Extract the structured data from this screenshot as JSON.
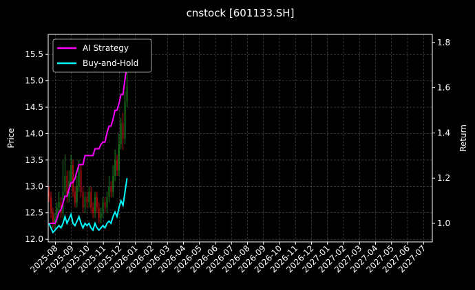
{
  "chart_data": {
    "type": "candlestick",
    "title": "cnstock [601133.SH]",
    "ylabel": "Price",
    "y2label": "Return",
    "x": [
      -0.4,
      -0.275,
      -0.15,
      -0.025,
      0.1,
      0.225,
      0.35,
      0.475,
      0.6,
      0.725,
      0.85,
      0.975,
      1.1,
      1.225,
      1.35,
      1.475,
      1.6,
      1.725,
      1.85,
      1.975,
      2.1,
      2.225,
      2.35,
      2.475,
      2.6,
      2.725,
      2.85,
      2.975,
      3.1,
      3.225,
      3.35,
      3.475,
      3.6,
      3.725,
      3.85,
      3.975,
      4.1,
      4.225,
      4.35,
      4.475
    ],
    "open": [
      12.9,
      12.8,
      12.5,
      12.3,
      12.4,
      12.6,
      12.7,
      12.5,
      12.9,
      13.2,
      12.8,
      13.1,
      13.4,
      12.9,
      12.7,
      13.0,
      13.3,
      12.9,
      12.6,
      12.8,
      12.7,
      12.9,
      12.6,
      12.5,
      12.8,
      12.6,
      12.4,
      12.5,
      12.7,
      12.6,
      12.8,
      13.0,
      12.9,
      13.2,
      13.5,
      13.3,
      13.8,
      14.2,
      13.9,
      14.6
    ],
    "high": [
      13.0,
      12.9,
      12.6,
      12.5,
      12.7,
      12.9,
      12.8,
      13.5,
      13.6,
      13.3,
      13.3,
      13.6,
      13.5,
      13.0,
      13.2,
      13.5,
      13.4,
      13.0,
      12.9,
      12.9,
      13.0,
      13.0,
      12.7,
      12.9,
      12.9,
      12.7,
      12.6,
      12.8,
      12.8,
      12.9,
      13.2,
      13.1,
      13.4,
      13.7,
      13.6,
      14.0,
      14.3,
      14.4,
      14.8,
      15.6
    ],
    "low": [
      12.7,
      12.4,
      12.2,
      12.2,
      12.3,
      12.5,
      12.4,
      12.4,
      12.8,
      12.7,
      12.7,
      13.0,
      12.8,
      12.6,
      12.6,
      12.9,
      12.8,
      12.5,
      12.5,
      12.6,
      12.6,
      12.5,
      12.4,
      12.4,
      12.5,
      12.3,
      12.3,
      12.4,
      12.5,
      12.5,
      12.7,
      12.8,
      12.8,
      13.1,
      13.2,
      13.2,
      13.7,
      13.7,
      13.8,
      14.5
    ],
    "close": [
      12.8,
      12.5,
      12.3,
      12.4,
      12.6,
      12.7,
      12.5,
      12.9,
      13.2,
      12.8,
      13.1,
      13.4,
      12.9,
      12.7,
      13.0,
      13.3,
      12.9,
      12.6,
      12.8,
      12.7,
      12.9,
      12.6,
      12.5,
      12.8,
      12.6,
      12.4,
      12.5,
      12.7,
      12.6,
      12.8,
      13.0,
      12.9,
      13.2,
      13.5,
      13.3,
      13.8,
      14.2,
      13.9,
      14.6,
      14.9
    ],
    "up_color": "#1f8a1f",
    "down_color": "#d01010",
    "series": [
      {
        "name": "AI Strategy",
        "color": "#ff00ff",
        "axis": "y2",
        "values": [
          1.0,
          1.0,
          1.0,
          1.0,
          1.02,
          1.05,
          1.06,
          1.09,
          1.12,
          1.12,
          1.15,
          1.18,
          1.18,
          1.2,
          1.23,
          1.26,
          1.26,
          1.26,
          1.3,
          1.3,
          1.3,
          1.3,
          1.3,
          1.33,
          1.33,
          1.33,
          1.35,
          1.36,
          1.36,
          1.4,
          1.43,
          1.43,
          1.46,
          1.5,
          1.5,
          1.53,
          1.57,
          1.57,
          1.64,
          1.7
        ]
      },
      {
        "name": "Buy-and-Hold",
        "color": "#00ffff",
        "axis": "y2",
        "values": [
          1.0,
          0.98,
          0.96,
          0.97,
          0.98,
          0.99,
          0.98,
          1.0,
          1.03,
          1.0,
          1.02,
          1.04,
          1.0,
          0.99,
          1.01,
          1.03,
          1.0,
          0.98,
          1.0,
          0.99,
          1.0,
          0.98,
          0.97,
          1.0,
          0.98,
          0.97,
          0.98,
          0.99,
          0.98,
          1.0,
          1.01,
          1.0,
          1.03,
          1.05,
          1.03,
          1.07,
          1.1,
          1.08,
          1.14,
          1.2
        ]
      }
    ],
    "xlim": [
      -0.45,
      23.55
    ],
    "xticks": [
      {
        "value": 0,
        "label": "2025-08"
      },
      {
        "value": 1,
        "label": "2025-09"
      },
      {
        "value": 2,
        "label": "2025-10"
      },
      {
        "value": 3,
        "label": "2025-11"
      },
      {
        "value": 4,
        "label": "2025-12"
      },
      {
        "value": 5,
        "label": "2026-01"
      },
      {
        "value": 6,
        "label": "2026-02"
      },
      {
        "value": 7,
        "label": "2026-03"
      },
      {
        "value": 8,
        "label": "2026-04"
      },
      {
        "value": 9,
        "label": "2026-05"
      },
      {
        "value": 10,
        "label": "2026-06"
      },
      {
        "value": 11,
        "label": "2026-07"
      },
      {
        "value": 12,
        "label": "2026-08"
      },
      {
        "value": 13,
        "label": "2026-09"
      },
      {
        "value": 14,
        "label": "2026-10"
      },
      {
        "value": 15,
        "label": "2026-11"
      },
      {
        "value": 16,
        "label": "2026-12"
      },
      {
        "value": 17,
        "label": "2027-01"
      },
      {
        "value": 18,
        "label": "2027-02"
      },
      {
        "value": 19,
        "label": "2027-03"
      },
      {
        "value": 20,
        "label": "2027-04"
      },
      {
        "value": 21,
        "label": "2027-05"
      },
      {
        "value": 22,
        "label": "2027-06"
      },
      {
        "value": 23,
        "label": "2027-07"
      }
    ],
    "ylim": [
      11.95,
      15.88
    ],
    "yticks": [
      {
        "value": 12,
        "label": "12.0"
      },
      12.5,
      {
        "value": 13,
        "label": "13.0"
      },
      13.5,
      {
        "value": 14,
        "label": "14.0"
      },
      14.5,
      {
        "value": 15,
        "label": "15.0"
      },
      15.5
    ],
    "y2lim": [
      0.918,
      1.836
    ],
    "y2ticks": [
      {
        "value": 1,
        "label": "1.0"
      },
      1.2,
      1.4,
      1.6,
      1.8
    ],
    "grid": true,
    "legend": "upper left"
  }
}
